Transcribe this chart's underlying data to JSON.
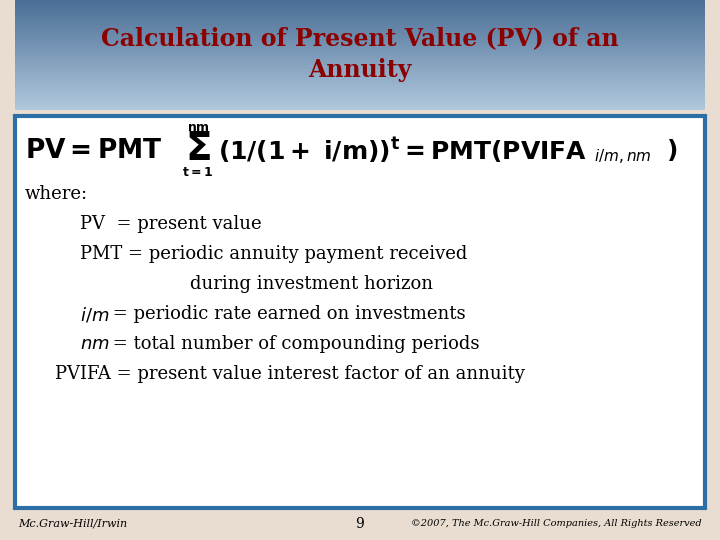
{
  "title_line1": "Calculation of Present Value (PV) of an",
  "title_line2": "Annuity",
  "title_color": "#8B0000",
  "title_fontsize": 17,
  "title_bg_top": "#4A6E96",
  "title_bg_bottom": "#B0C8DC",
  "body_bg": "white",
  "slide_bg": "#E8DDD0",
  "border_color": "#2E6EA6",
  "formula_fontsize": 17,
  "text_fontsize": 13,
  "footer_left": "Mc.Graw-Hill/Irwin",
  "footer_center": "9",
  "footer_right": "©2007, The Mc.Graw-Hill Companies, All Rights Reserved",
  "footer_fontsize": 8
}
